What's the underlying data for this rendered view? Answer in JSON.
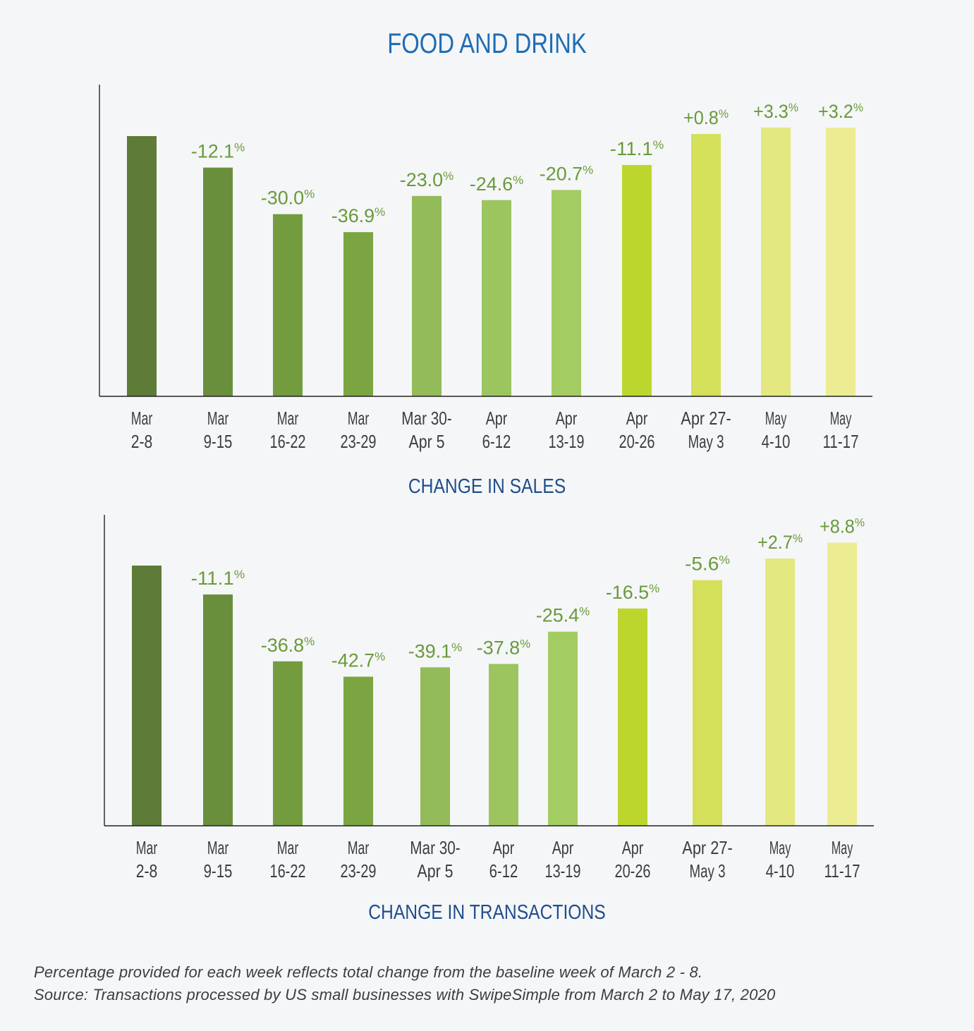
{
  "title": "FOOD AND DRINK",
  "footnotes": [
    "Percentage provided for each week reflects total change from the baseline week of March 2 - 8.",
    "Source: Transactions processed by US small businesses with SwipeSimple from March 2 to May 17, 2020"
  ],
  "chart_data": [
    {
      "type": "bar",
      "title": "CHANGE IN SALES",
      "xlabel": "",
      "ylabel": "",
      "categories": [
        [
          "Mar",
          "2-8"
        ],
        [
          "Mar",
          "9-15"
        ],
        [
          "Mar",
          "16-22"
        ],
        [
          "Mar",
          "23-29"
        ],
        [
          "Mar 30-",
          "Apr 5"
        ],
        [
          "Apr",
          "6-12"
        ],
        [
          "Apr",
          "13-19"
        ],
        [
          "Apr",
          "20-26"
        ],
        [
          "Apr 27-",
          "May 3"
        ],
        [
          "May",
          "4-10"
        ],
        [
          "May",
          "11-17"
        ]
      ],
      "values": [
        0,
        -12.1,
        -30.0,
        -36.9,
        -23.0,
        -24.6,
        -20.7,
        -11.1,
        0.8,
        3.3,
        3.2
      ],
      "labels": [
        null,
        "-12.1%",
        "-30.0%",
        "-36.9%",
        "-23.0%",
        "-24.6%",
        "-20.7%",
        "-11.1%",
        "+0.8%",
        "+3.3%",
        "+3.2%"
      ],
      "baseline": "Mar 2-8",
      "unit": "% change from baseline week",
      "grid": false,
      "legend": "none"
    },
    {
      "type": "bar",
      "title": "CHANGE IN TRANSACTIONS",
      "xlabel": "",
      "ylabel": "",
      "categories": [
        [
          "Mar",
          "2-8"
        ],
        [
          "Mar",
          "9-15"
        ],
        [
          "Mar",
          "16-22"
        ],
        [
          "Mar",
          "23-29"
        ],
        [
          "Mar 30-",
          "Apr 5"
        ],
        [
          "Apr",
          "6-12"
        ],
        [
          "Apr",
          "13-19"
        ],
        [
          "Apr",
          "20-26"
        ],
        [
          "Apr 27-",
          "May 3"
        ],
        [
          "May",
          "4-10"
        ],
        [
          "May",
          "11-17"
        ]
      ],
      "values": [
        0,
        -11.1,
        -36.8,
        -42.7,
        -39.1,
        -37.8,
        -25.4,
        -16.5,
        -5.6,
        2.7,
        8.8
      ],
      "labels": [
        null,
        "-11.1%",
        "-36.8%",
        "-42.7%",
        "-39.1%",
        "-37.8%",
        "-25.4%",
        "-16.5%",
        "-5.6%",
        "+2.7%",
        "+8.8%"
      ],
      "baseline": "Mar 2-8",
      "unit": "% change from baseline week",
      "grid": false,
      "legend": "none"
    }
  ],
  "colors": {
    "title": "#1f6db5",
    "subtitle": "#1f4e8c",
    "label": "#6a9a3a",
    "axis_text": "#3b3d42",
    "bars": [
      "#5e7b37",
      "#6a8f3c",
      "#739c3f",
      "#7ba540",
      "#93bb5a",
      "#9cc55f",
      "#a3cc62",
      "#bcd62e",
      "#d4e05a",
      "#e3e880",
      "#ecec93"
    ]
  }
}
